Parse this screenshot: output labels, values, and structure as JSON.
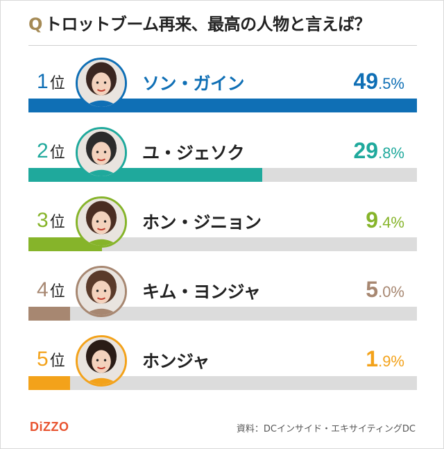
{
  "title": {
    "q_mark": "Q",
    "text": "トロットブーム再来、最高の人物と言えば？"
  },
  "rank_suffix": "位",
  "chart_data": {
    "type": "bar",
    "orientation": "horizontal",
    "title": "トロットブーム再来、最高の人物と言えば？",
    "categories": [
      "ソン・ガイン",
      "ユ・ジェソク",
      "ホン・ジニョン",
      "キム・ヨンジャ",
      "ホンジャ"
    ],
    "values": [
      49.5,
      29.8,
      9.4,
      5.0,
      1.9
    ],
    "unit": "%",
    "ylim": [
      0,
      49.5
    ],
    "grid": false,
    "legend": "none"
  },
  "rows": [
    {
      "rank": "1",
      "name": "ソン・ガイン",
      "pct_int": "49",
      "pct_dec": ".5%",
      "value": 49.5,
      "color": "#0f6fb5",
      "avatar_icon": "portrait-icon"
    },
    {
      "rank": "2",
      "name": "ユ・ジェソク",
      "pct_int": "29",
      "pct_dec": ".8%",
      "value": 29.8,
      "color": "#1fa99c",
      "avatar_icon": "portrait-icon"
    },
    {
      "rank": "3",
      "name": "ホン・ジニョン",
      "pct_int": "9",
      "pct_dec": ".4%",
      "value": 9.4,
      "color": "#86b42a",
      "avatar_icon": "portrait-icon"
    },
    {
      "rank": "4",
      "name": "キム・ヨンジャ",
      "pct_int": "5",
      "pct_dec": ".0%",
      "value": 5.0,
      "color": "#a78771",
      "avatar_icon": "portrait-icon"
    },
    {
      "rank": "5",
      "name": "ホンジャ",
      "pct_int": "1",
      "pct_dec": ".9%",
      "value": 1.9,
      "color": "#f3a21a",
      "avatar_icon": "portrait-icon"
    }
  ],
  "footer": {
    "logo": "DiZZO",
    "source": "資料：DCインサイド・エキサイティングDC"
  }
}
